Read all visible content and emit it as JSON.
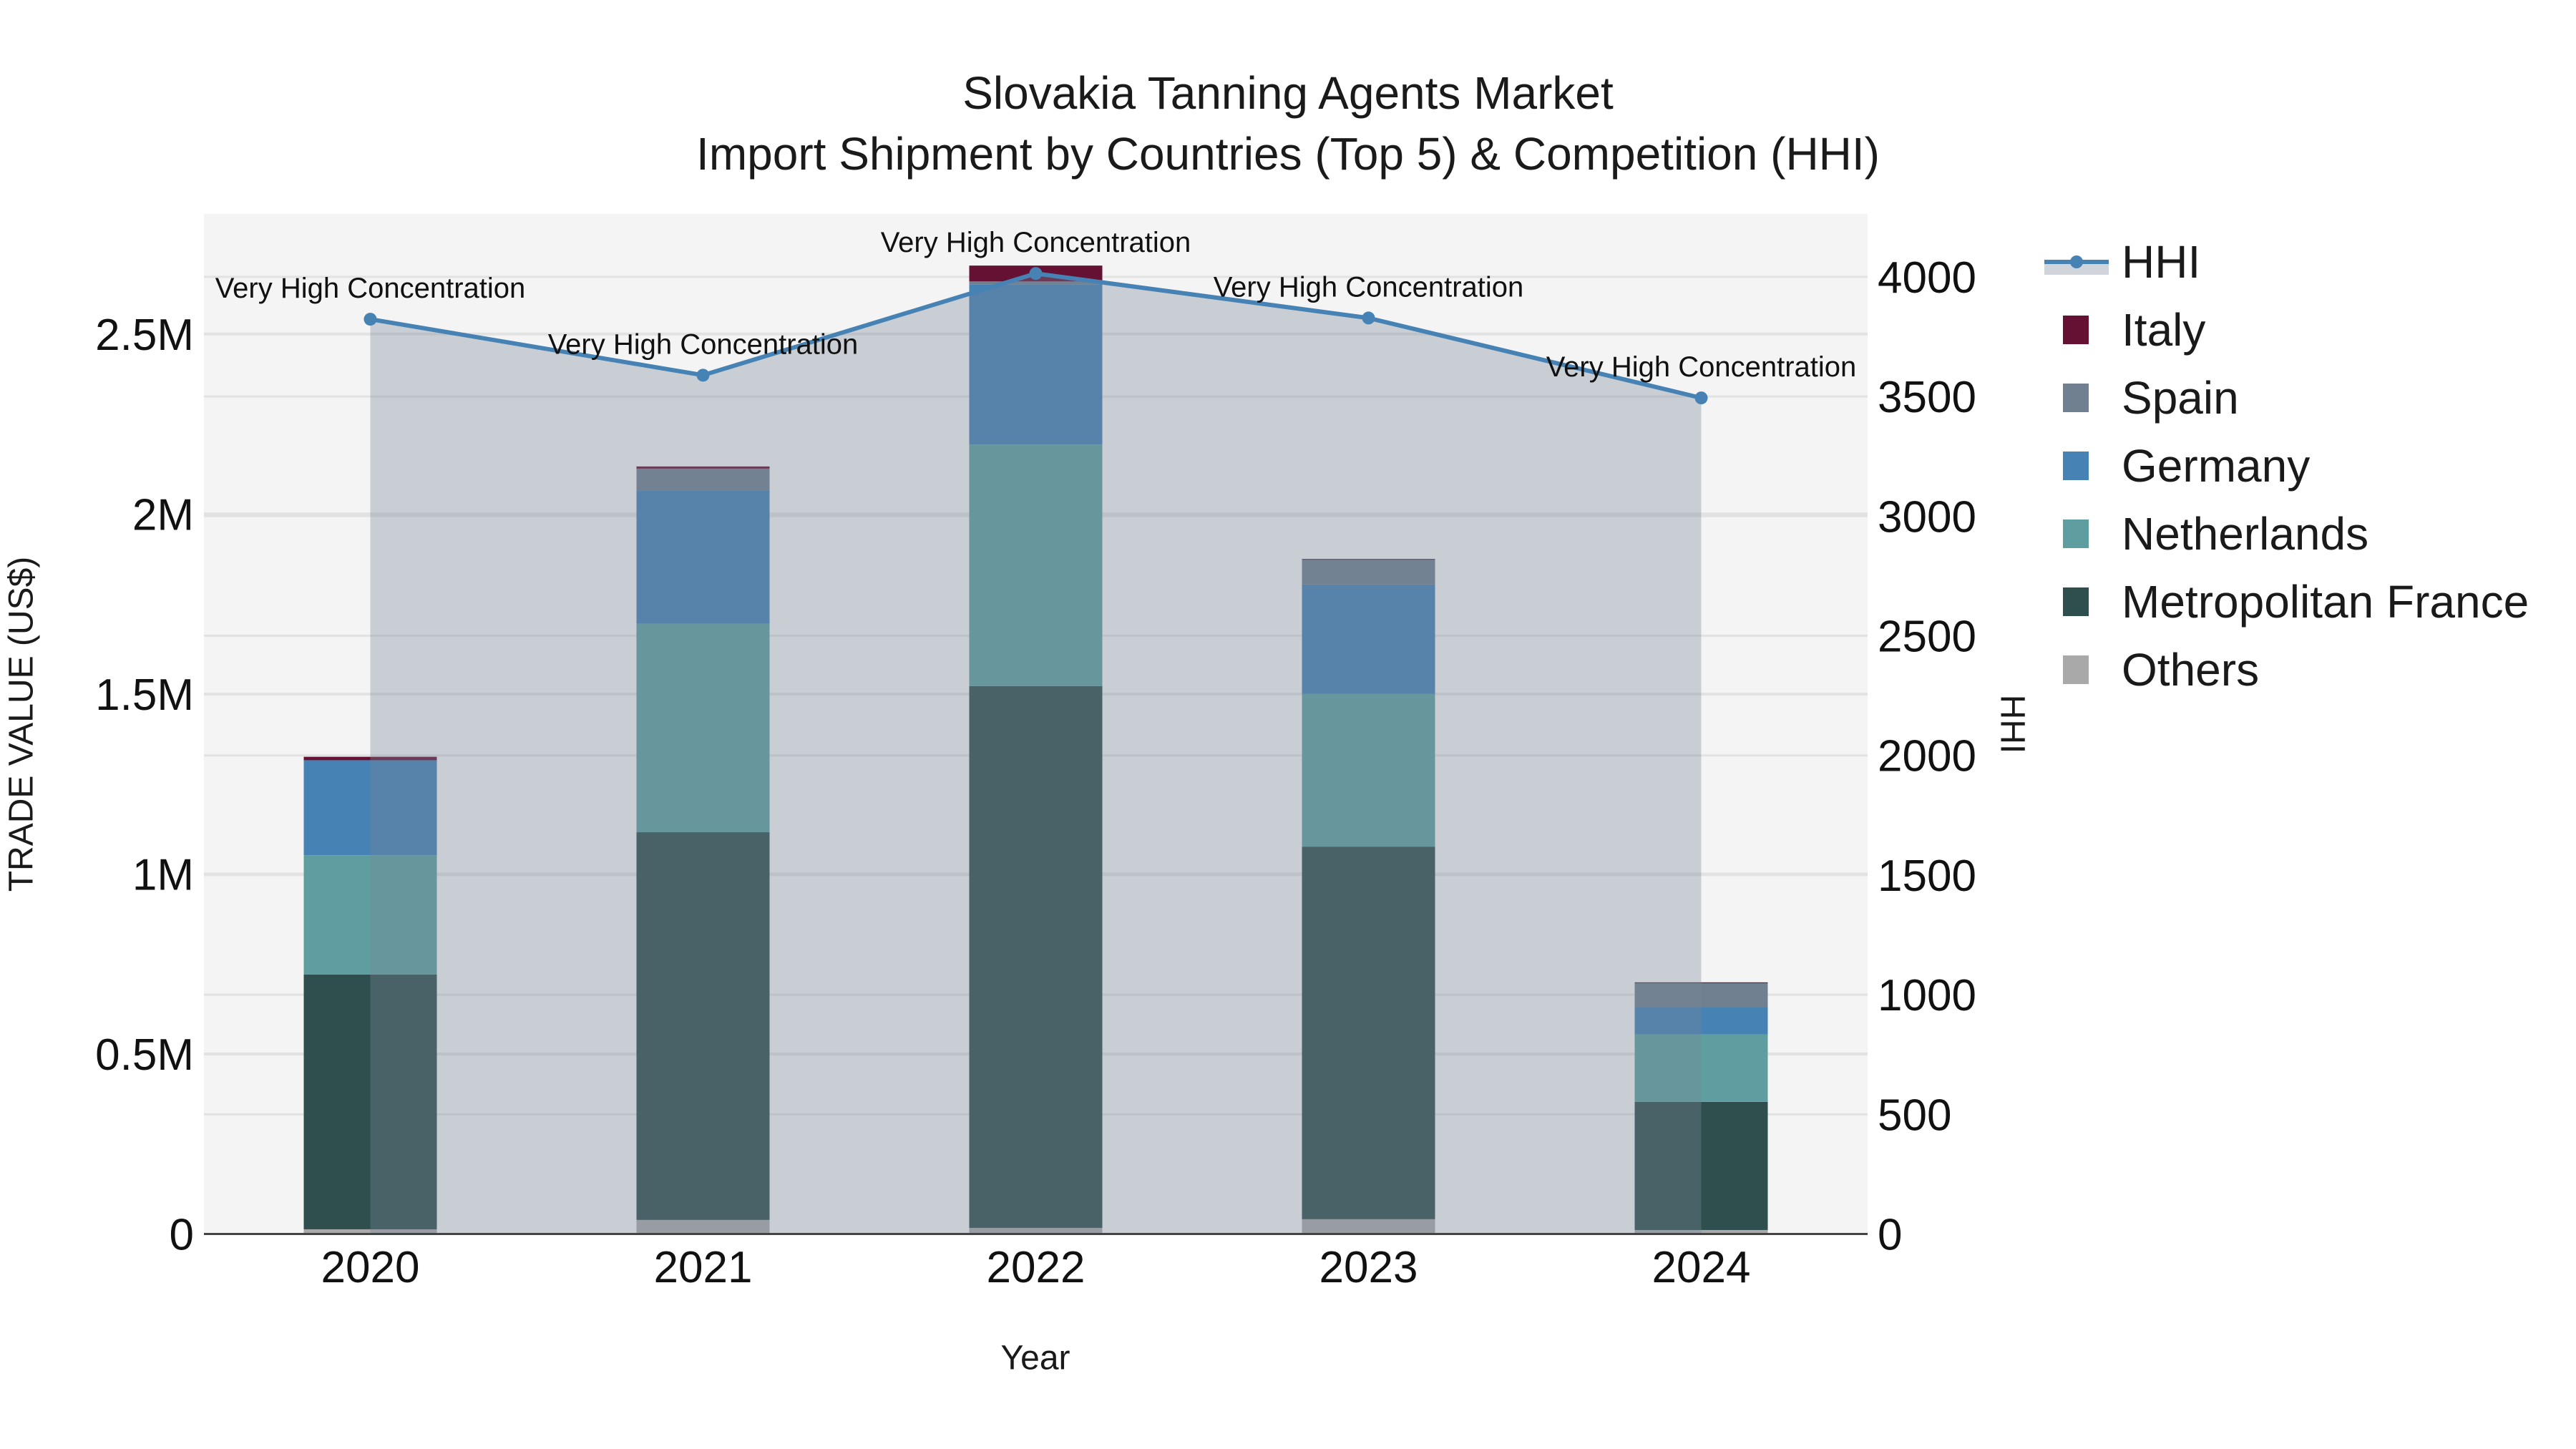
{
  "header": {
    "title_line1": "Slovakia Tanning Agents Market",
    "title_line2": "Import Shipment by Countries (Top 5) & Competition (HHI)"
  },
  "axes": {
    "x_title": "Year",
    "y_left_title": "TRADE VALUE (US$)",
    "y_right_title": "HHI",
    "y_left_ticks": [
      "0",
      "0.5M",
      "1M",
      "1.5M",
      "2M",
      "2.5M"
    ],
    "y_right_ticks": [
      "0",
      "500",
      "1000",
      "1500",
      "2000",
      "2500",
      "3000",
      "3500",
      "4000"
    ]
  },
  "legend": {
    "items": [
      {
        "label": "HHI",
        "color": "#4682B4",
        "type": "line"
      },
      {
        "label": "Italy",
        "color": "#641134",
        "type": "bar"
      },
      {
        "label": "Spain",
        "color": "#708090",
        "type": "bar"
      },
      {
        "label": "Germany",
        "color": "#4682B4",
        "type": "bar"
      },
      {
        "label": "Netherlands",
        "color": "#5F9EA0",
        "type": "bar"
      },
      {
        "label": "Metropolitan France",
        "color": "#2F4F4F",
        "type": "bar"
      },
      {
        "label": "Others",
        "color": "#A9A9A9",
        "type": "bar"
      }
    ]
  },
  "colors": {
    "plot_bg": "#F4F4F4",
    "grid": "#E2E2E2",
    "hhi_line": "#4682B4",
    "hhi_fill": "rgba(119,136,153,0.35)"
  },
  "chart_data": {
    "type": "bar",
    "title": "Slovakia Tanning Agents Market — Import Shipment by Countries (Top 5) & Competition (HHI)",
    "xlabel": "Year",
    "ylabel": "TRADE VALUE (US$)",
    "y2label": "HHI",
    "categories": [
      "2020",
      "2021",
      "2022",
      "2023",
      "2024"
    ],
    "stacked": true,
    "ylim": [
      0,
      2830000
    ],
    "y2lim": [
      0,
      4260
    ],
    "grid": true,
    "legend_position": "right",
    "series": [
      {
        "name": "Others",
        "color": "#A9A9A9",
        "values": [
          13000,
          39000,
          17000,
          41000,
          11000
        ]
      },
      {
        "name": "Metropolitan France",
        "color": "#2F4F4F",
        "values": [
          708000,
          1077000,
          1505000,
          1035000,
          356000
        ]
      },
      {
        "name": "Netherlands",
        "color": "#5F9EA0",
        "values": [
          331000,
          579000,
          671000,
          424000,
          187000
        ]
      },
      {
        "name": "Germany",
        "color": "#4682B4",
        "values": [
          264000,
          370000,
          445000,
          304000,
          76000
        ]
      },
      {
        "name": "Spain",
        "color": "#708090",
        "values": [
          0,
          61000,
          8000,
          70000,
          68000
        ]
      },
      {
        "name": "Italy",
        "color": "#641134",
        "values": [
          9500,
          6000,
          44000,
          1000,
          1000
        ]
      }
    ],
    "line_series": {
      "name": "HHI",
      "axis": "right",
      "color": "#4682B4",
      "fill": "tozeroy",
      "values": [
        3823,
        3589,
        4014,
        3828,
        3494
      ],
      "annotations": [
        "Very High Concentration",
        "Very High Concentration",
        "Very High Concentration",
        "Very High Concentration",
        "Very High Concentration"
      ]
    }
  }
}
